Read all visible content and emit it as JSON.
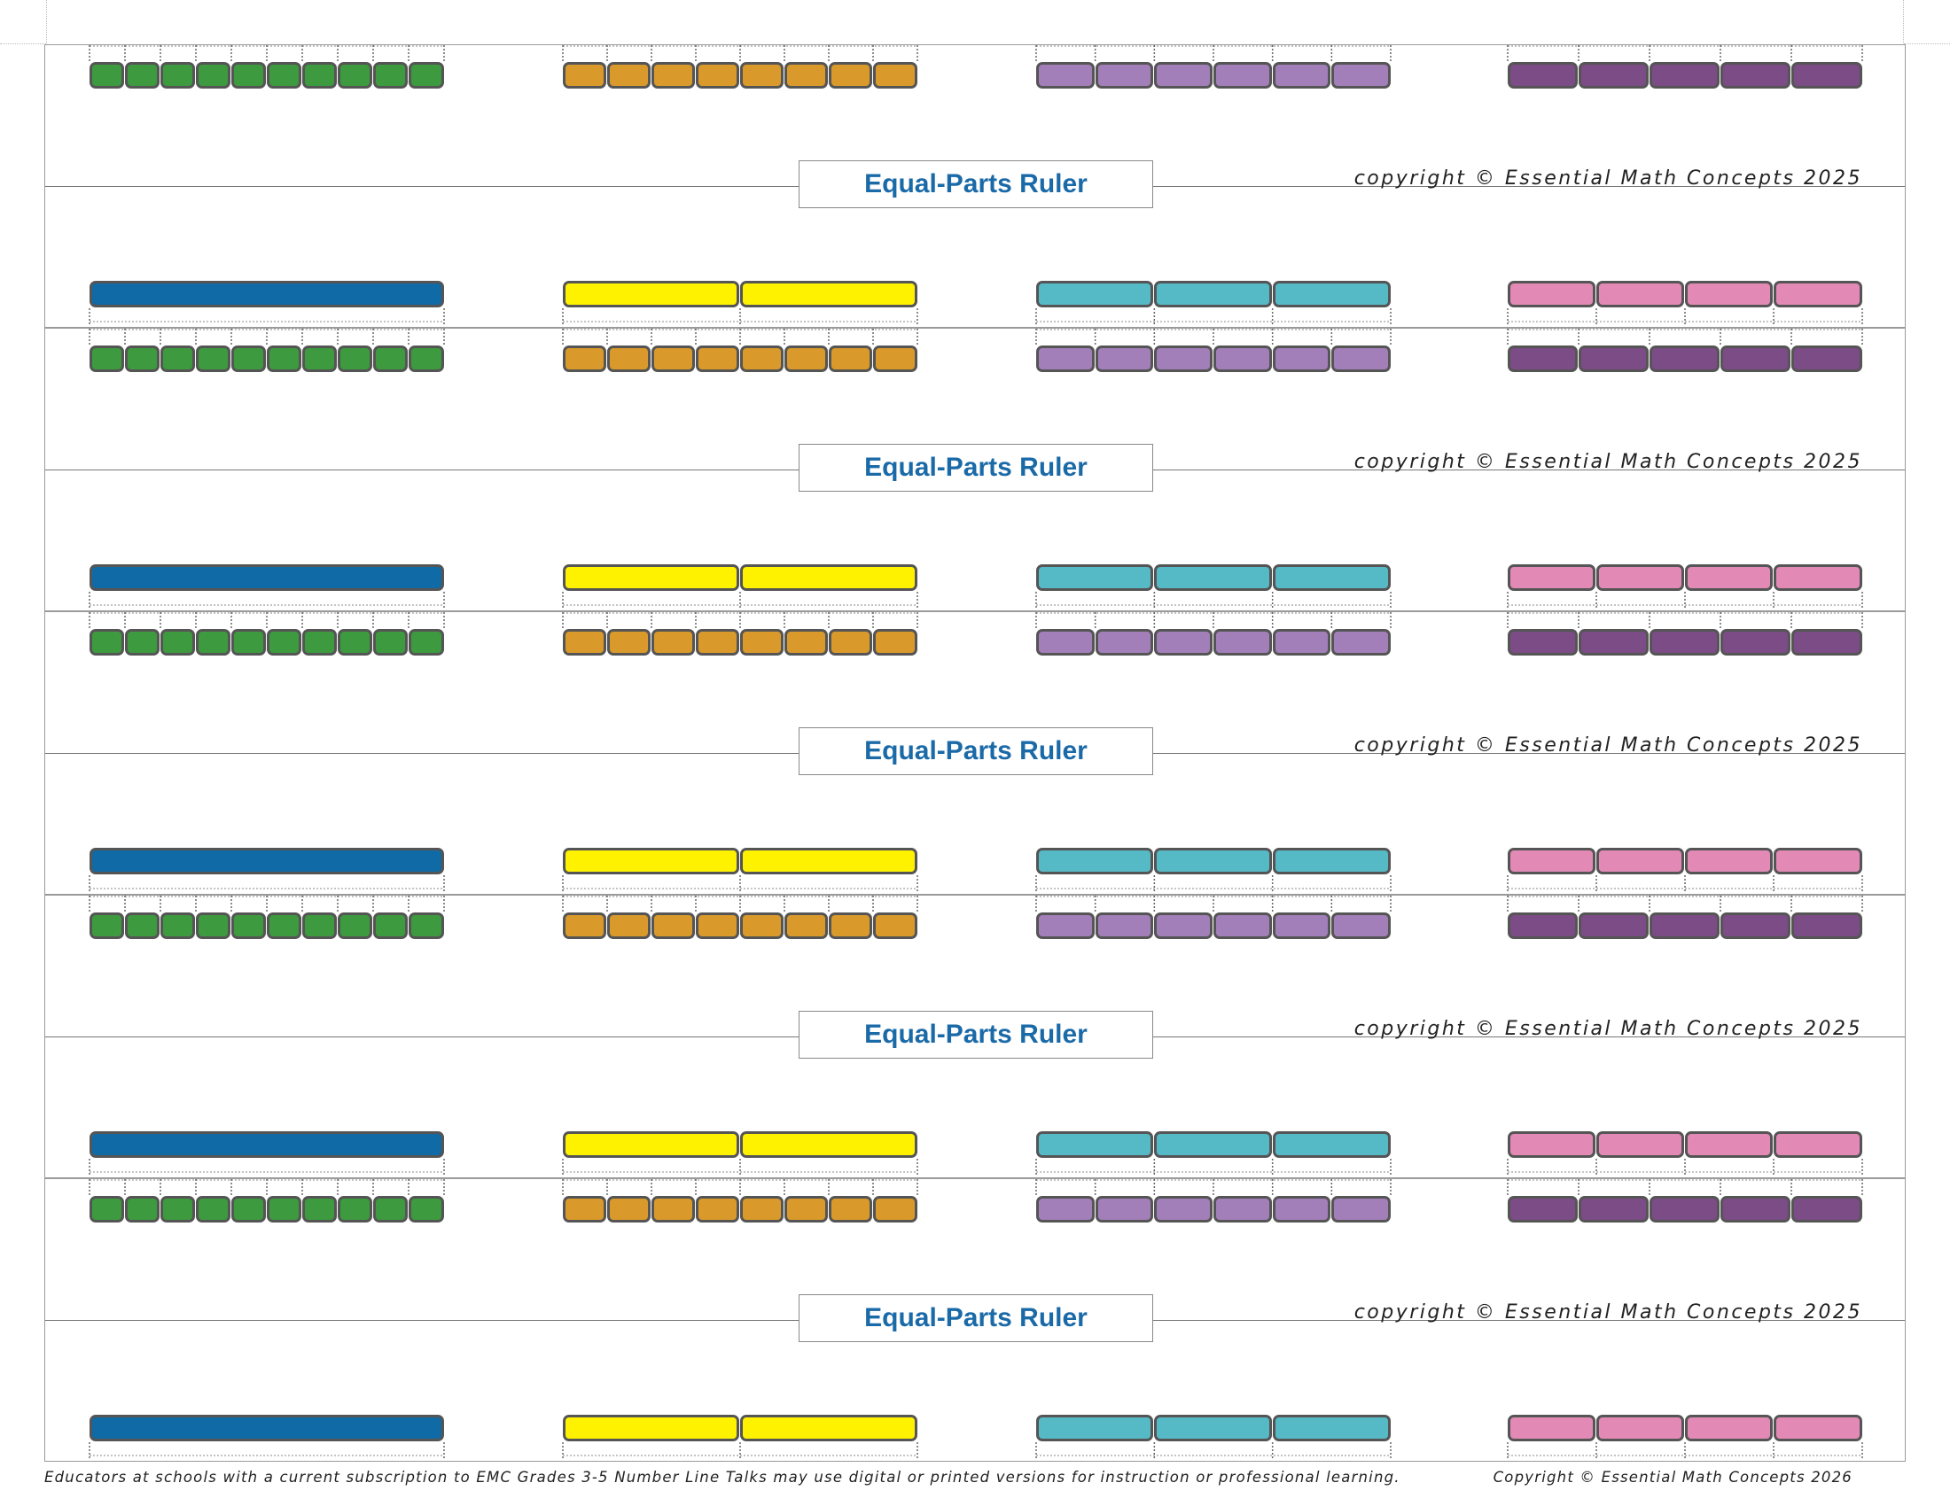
{
  "ruler_title": "Equal-Parts Ruler",
  "ruler_copyright": "copyright © Essential Math Concepts 2025",
  "ruler_count": 5,
  "bottom_edge_bars": [
    {
      "name": "green-bar",
      "parts": 10,
      "color": "#3d9a3f"
    },
    {
      "name": "orange-bar",
      "parts": 8,
      "color": "#d99a2b"
    },
    {
      "name": "lavender-bar",
      "parts": 6,
      "color": "#a27fb8"
    },
    {
      "name": "plum-bar",
      "parts": 5,
      "color": "#7b4c85"
    }
  ],
  "top_edge_bars": [
    {
      "name": "blue-bar",
      "parts": 1,
      "color": "#0f6aa6"
    },
    {
      "name": "yellow-bar",
      "parts": 2,
      "color": "#fff200"
    },
    {
      "name": "teal-bar",
      "parts": 3,
      "color": "#56b9c6"
    },
    {
      "name": "pink-bar",
      "parts": 4,
      "color": "#e28ab5"
    }
  ],
  "footer": {
    "note": "Educators at schools with a current subscription to EMC Grades 3-5 Number Line Talks may use digital or printed versions for instruction or professional learning.",
    "copyright": "Copyright © Essential Math Concepts 2026"
  }
}
